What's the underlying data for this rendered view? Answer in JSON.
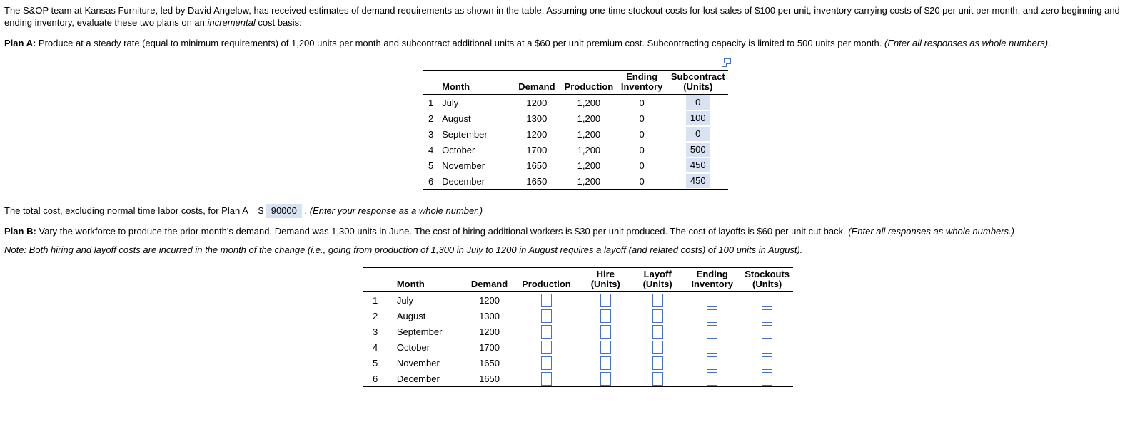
{
  "colors": {
    "accent_blue": "#4472c4",
    "answer_highlight": "#d9e2f3",
    "table_rule": "#000000"
  },
  "intro": {
    "text_before_italic": "The S&OP team at Kansas Furniture, led by David Angelow, has received estimates of demand requirements as shown in the table. Assuming one-time stockout costs for lost sales of $100 per unit, inventory carrying costs of $20 per unit per month, and zero beginning and ending inventory, evaluate these two plans on an ",
    "italic_word": "incremental",
    "text_after_italic": " cost basis:"
  },
  "plan_a": {
    "label": "Plan A:",
    "description": " Produce at a steady rate (equal to minimum requirements) of 1,200 units per month and subcontract additional units at a $60 per unit premium cost. Subcontracting capacity is limited to 500 units per month. ",
    "instruction_italic": "(Enter all responses as whole numbers)",
    "suffix": ".",
    "table": {
      "popout_icon": "popout-table-icon",
      "col_month": "Month",
      "col_demand": "Demand",
      "col_production": "Production",
      "col_ending_line1": "Ending",
      "col_ending_line2": "Inventory",
      "col_subcontract_line1": "Subcontract",
      "col_subcontract_line2": "(Units)",
      "rows": [
        {
          "num": "1",
          "month": "July",
          "demand": "1200",
          "production": "1,200",
          "ending_inventory": "0",
          "subcontract": "0"
        },
        {
          "num": "2",
          "month": "August",
          "demand": "1300",
          "production": "1,200",
          "ending_inventory": "0",
          "subcontract": "100"
        },
        {
          "num": "3",
          "month": "September",
          "demand": "1200",
          "production": "1,200",
          "ending_inventory": "0",
          "subcontract": "0"
        },
        {
          "num": "4",
          "month": "October",
          "demand": "1700",
          "production": "1,200",
          "ending_inventory": "0",
          "subcontract": "500"
        },
        {
          "num": "5",
          "month": "November",
          "demand": "1650",
          "production": "1,200",
          "ending_inventory": "0",
          "subcontract": "450"
        },
        {
          "num": "6",
          "month": "December",
          "demand": "1650",
          "production": "1,200",
          "ending_inventory": "0",
          "subcontract": "450"
        }
      ]
    }
  },
  "total_cost_line": {
    "prefix": "The total cost, excluding normal time labor costs, for Plan A = $ ",
    "value": "90000",
    "separator": " . ",
    "instruction_italic": "(Enter your response as a whole number.)"
  },
  "plan_b": {
    "label": "Plan B:",
    "description": " Vary the workforce to produce the prior month's demand. Demand was 1,300 units in June. The cost of hiring additional workers is $30 per unit produced. The cost of layoffs is $60 per unit cut back. ",
    "instruction_italic": "(Enter all responses as whole numbers.)",
    "note_italic": "Note: Both hiring and layoff costs are incurred in the month of the change (i.e., going from production of 1,300 in July to 1200 in August requires a layoff (and related costs) of 100 units in August).",
    "table": {
      "col_month": "Month",
      "col_demand": "Demand",
      "col_production": "Production",
      "col_hire_line1": "Hire",
      "col_hire_line2": "(Units)",
      "col_layoff_line1": "Layoff",
      "col_layoff_line2": "(Units)",
      "col_ending_line1": "Ending",
      "col_ending_line2": "Inventory",
      "col_stockouts_line1": "Stockouts",
      "col_stockouts_line2": "(Units)",
      "rows": [
        {
          "num": "1",
          "month": "July",
          "demand": "1200",
          "production": "",
          "hire": "",
          "layoff": "",
          "ending_inventory": "",
          "stockouts": ""
        },
        {
          "num": "2",
          "month": "August",
          "demand": "1300",
          "production": "",
          "hire": "",
          "layoff": "",
          "ending_inventory": "",
          "stockouts": ""
        },
        {
          "num": "3",
          "month": "September",
          "demand": "1200",
          "production": "",
          "hire": "",
          "layoff": "",
          "ending_inventory": "",
          "stockouts": ""
        },
        {
          "num": "4",
          "month": "October",
          "demand": "1700",
          "production": "",
          "hire": "",
          "layoff": "",
          "ending_inventory": "",
          "stockouts": ""
        },
        {
          "num": "5",
          "month": "November",
          "demand": "1650",
          "production": "",
          "hire": "",
          "layoff": "",
          "ending_inventory": "",
          "stockouts": ""
        },
        {
          "num": "6",
          "month": "December",
          "demand": "1650",
          "production": "",
          "hire": "",
          "layoff": "",
          "ending_inventory": "",
          "stockouts": ""
        }
      ]
    }
  }
}
